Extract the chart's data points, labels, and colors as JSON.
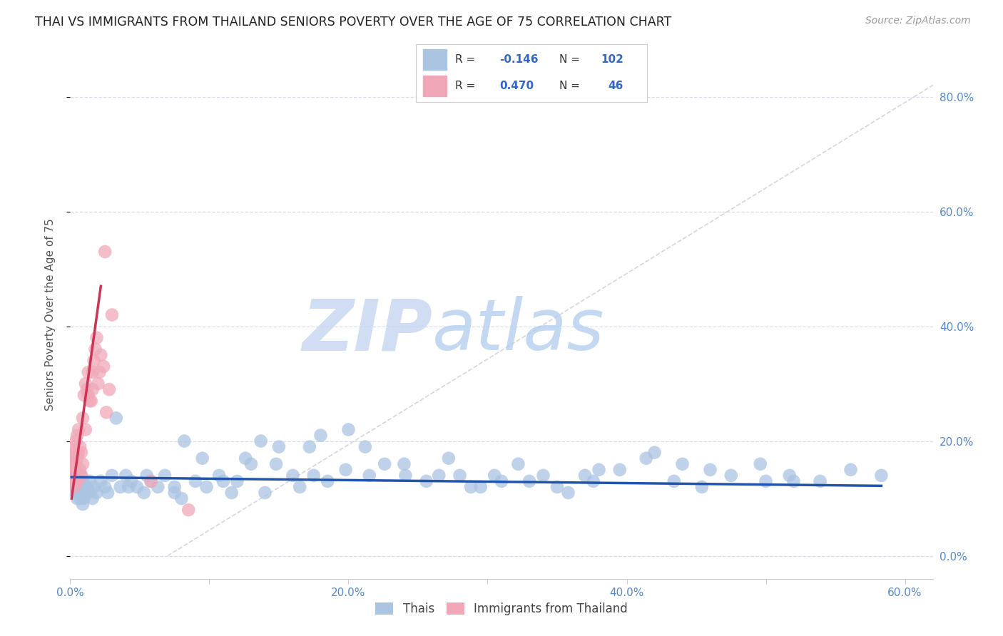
{
  "title": "THAI VS IMMIGRANTS FROM THAILAND SENIORS POVERTY OVER THE AGE OF 75 CORRELATION CHART",
  "source": "Source: ZipAtlas.com",
  "ylabel": "Seniors Poverty Over the Age of 75",
  "xlim": [
    0.0,
    0.62
  ],
  "ylim": [
    -0.04,
    0.88
  ],
  "thai_R": -0.146,
  "thai_N": 102,
  "imm_R": 0.47,
  "imm_N": 46,
  "thai_color": "#aac4e2",
  "imm_color": "#f0a8b8",
  "thai_line_color": "#2255aa",
  "imm_line_color": "#cc3355",
  "ref_line_color": "#cccccc",
  "grid_color": "#d8dce8",
  "background_color": "#ffffff",
  "watermark_zip": "ZIP",
  "watermark_atlas": "atlas",
  "watermark_color_zip": "#ccd8ee",
  "watermark_color_atlas": "#aac8e8",
  "thai_x": [
    0.001,
    0.002,
    0.003,
    0.003,
    0.004,
    0.004,
    0.005,
    0.005,
    0.006,
    0.006,
    0.006,
    0.007,
    0.007,
    0.008,
    0.008,
    0.009,
    0.009,
    0.01,
    0.01,
    0.011,
    0.012,
    0.013,
    0.014,
    0.016,
    0.017,
    0.019,
    0.022,
    0.025,
    0.027,
    0.03,
    0.033,
    0.036,
    0.04,
    0.044,
    0.048,
    0.053,
    0.058,
    0.063,
    0.068,
    0.075,
    0.082,
    0.09,
    0.098,
    0.107,
    0.116,
    0.126,
    0.137,
    0.148,
    0.16,
    0.172,
    0.185,
    0.198,
    0.212,
    0.226,
    0.241,
    0.256,
    0.272,
    0.288,
    0.305,
    0.322,
    0.34,
    0.358,
    0.376,
    0.395,
    0.414,
    0.434,
    0.454,
    0.475,
    0.496,
    0.517,
    0.539,
    0.561,
    0.583,
    0.31,
    0.42,
    0.37,
    0.18,
    0.24,
    0.46,
    0.5,
    0.13,
    0.15,
    0.2,
    0.35,
    0.28,
    0.44,
    0.12,
    0.165,
    0.215,
    0.52,
    0.095,
    0.075,
    0.055,
    0.042,
    0.33,
    0.38,
    0.265,
    0.295,
    0.08,
    0.11,
    0.14,
    0.175
  ],
  "thai_y": [
    0.14,
    0.13,
    0.12,
    0.15,
    0.11,
    0.13,
    0.12,
    0.1,
    0.13,
    0.11,
    0.14,
    0.1,
    0.12,
    0.11,
    0.14,
    0.09,
    0.13,
    0.12,
    0.1,
    0.11,
    0.12,
    0.11,
    0.13,
    0.1,
    0.12,
    0.11,
    0.13,
    0.12,
    0.11,
    0.14,
    0.24,
    0.12,
    0.14,
    0.13,
    0.12,
    0.11,
    0.13,
    0.12,
    0.14,
    0.12,
    0.2,
    0.13,
    0.12,
    0.14,
    0.11,
    0.17,
    0.2,
    0.16,
    0.14,
    0.19,
    0.13,
    0.15,
    0.19,
    0.16,
    0.14,
    0.13,
    0.17,
    0.12,
    0.14,
    0.16,
    0.14,
    0.11,
    0.13,
    0.15,
    0.17,
    0.13,
    0.12,
    0.14,
    0.16,
    0.14,
    0.13,
    0.15,
    0.14,
    0.13,
    0.18,
    0.14,
    0.21,
    0.16,
    0.15,
    0.13,
    0.16,
    0.19,
    0.22,
    0.12,
    0.14,
    0.16,
    0.13,
    0.12,
    0.14,
    0.13,
    0.17,
    0.11,
    0.14,
    0.12,
    0.13,
    0.15,
    0.14,
    0.12,
    0.1,
    0.13,
    0.11,
    0.14
  ],
  "imm_x": [
    0.001,
    0.001,
    0.002,
    0.002,
    0.002,
    0.003,
    0.003,
    0.003,
    0.004,
    0.004,
    0.004,
    0.005,
    0.005,
    0.005,
    0.006,
    0.006,
    0.006,
    0.007,
    0.007,
    0.008,
    0.008,
    0.009,
    0.009,
    0.01,
    0.011,
    0.011,
    0.012,
    0.013,
    0.013,
    0.014,
    0.015,
    0.016,
    0.016,
    0.017,
    0.018,
    0.019,
    0.02,
    0.021,
    0.022,
    0.024,
    0.026,
    0.028,
    0.058,
    0.085,
    0.025,
    0.03
  ],
  "imm_y": [
    0.14,
    0.17,
    0.13,
    0.16,
    0.19,
    0.12,
    0.15,
    0.18,
    0.13,
    0.16,
    0.2,
    0.13,
    0.17,
    0.21,
    0.14,
    0.18,
    0.22,
    0.15,
    0.19,
    0.14,
    0.18,
    0.16,
    0.24,
    0.28,
    0.22,
    0.3,
    0.29,
    0.28,
    0.32,
    0.27,
    0.27,
    0.29,
    0.32,
    0.34,
    0.36,
    0.38,
    0.3,
    0.32,
    0.35,
    0.33,
    0.25,
    0.29,
    0.13,
    0.08,
    0.53,
    0.42
  ]
}
